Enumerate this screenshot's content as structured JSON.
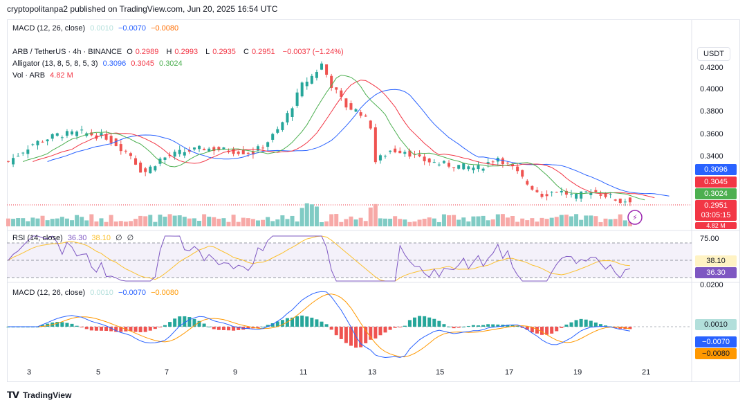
{
  "header": {
    "publish_line": "cryptopolitanpa2 published on TradingView.com, Jun 20, 2025 16:54 UTC"
  },
  "top_macd": {
    "label": "MACD (12, 26, close)",
    "v1": "0.0010",
    "v2": "−0.0070",
    "v3": "−0.0080"
  },
  "main": {
    "symbol": "ARB / TetherUS · 4h · BINANCE",
    "o_label": "O",
    "o": "0.2989",
    "h_label": "H",
    "h": "0.2993",
    "l_label": "L",
    "l": "0.2935",
    "c_label": "C",
    "c": "0.2951",
    "change": "−0.0037 (−1.24%)",
    "alligator_label": "Alligator (13, 8, 5, 8, 5, 3)",
    "jaw": "0.3096",
    "teeth": "0.3045",
    "lips": "0.3024",
    "vol_label": "Vol · ARB",
    "vol": "4.82 M",
    "currency_button": "USDT",
    "countdown": "03:05:15",
    "vol_tag": "4.82 M"
  },
  "rsi": {
    "label": "RSI (14, close)",
    "v1": "36.30",
    "v2": "38.10",
    "v3": "∅",
    "v4": "∅",
    "upper": "75.00"
  },
  "macd": {
    "label": "MACD (12, 26, close)",
    "v1": "0.0010",
    "v2": "−0.0070",
    "v3": "−0.0080",
    "axis_top": "0.0200"
  },
  "price_axis": [
    "0.4200",
    "0.4000",
    "0.3800",
    "0.3600",
    "0.3400"
  ],
  "x_axis": [
    "3",
    "5",
    "7",
    "9",
    "11",
    "13",
    "15",
    "17",
    "19",
    "21"
  ],
  "footer": {
    "brand": "TradingView"
  },
  "colors": {
    "up": "#26a69a",
    "down": "#ef5350",
    "jaw": "#2962ff",
    "teeth": "#f23645",
    "lips": "#4caf50",
    "rsi": "#7e57c2",
    "signal": "#ff9800"
  }
}
